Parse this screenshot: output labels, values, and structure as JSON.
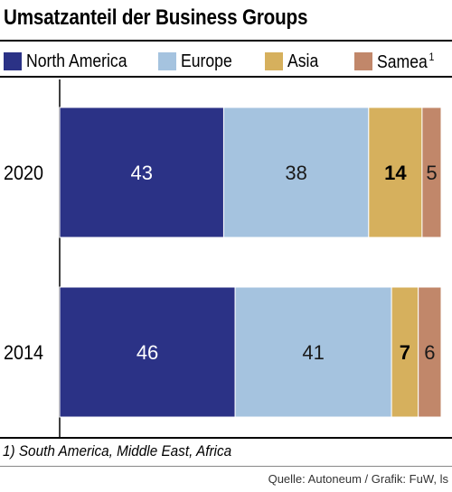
{
  "header": {
    "title": "Umsatzanteil der Business Groups"
  },
  "legend": [
    {
      "label": "North America",
      "color": "#2b3286",
      "sup": ""
    },
    {
      "label": "Europe",
      "color": "#a5c3df",
      "sup": ""
    },
    {
      "label": "Asia",
      "color": "#d6b05d",
      "sup": ""
    },
    {
      "label": "Samea",
      "color": "#c1876a",
      "sup": "1"
    }
  ],
  "chart_data": {
    "type": "bar",
    "orientation": "horizontal",
    "stacked": true,
    "title": "Umsatzanteil der Business Groups",
    "categories": [
      "2020",
      "2014"
    ],
    "series": [
      {
        "name": "North America",
        "values": [
          43,
          46
        ],
        "color": "#2b3286",
        "label_color": "#ffffff",
        "bold": false
      },
      {
        "name": "Europe",
        "values": [
          38,
          41
        ],
        "color": "#a5c3df",
        "label_color": "#1a1a1a",
        "bold": false
      },
      {
        "name": "Asia",
        "values": [
          14,
          7
        ],
        "color": "#d6b05d",
        "label_color": "#000000",
        "bold": true
      },
      {
        "name": "Samea",
        "values": [
          5,
          6
        ],
        "color": "#c1876a",
        "label_color": "#1a1a1a",
        "bold": false
      }
    ],
    "xlim": [
      0,
      100
    ],
    "grid": false,
    "legend_position": "top"
  },
  "footer": {
    "footnote": "1) South America, Middle East, Africa",
    "source": "Quelle: Autoneum / Grafik: FuW, ls"
  }
}
